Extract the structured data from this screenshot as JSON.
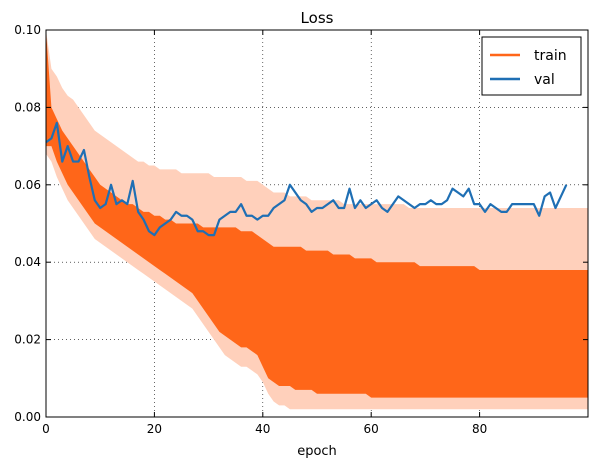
{
  "chart_data": {
    "type": "line",
    "title": "Loss",
    "xlabel": "epoch",
    "ylabel": "",
    "xlim": [
      0,
      100
    ],
    "ylim": [
      0.0,
      0.1
    ],
    "xticks": [
      0,
      20,
      40,
      60,
      80
    ],
    "xtick_labels": [
      "0",
      "20",
      "40",
      "60",
      "80"
    ],
    "yticks": [
      0.0,
      0.02,
      0.04,
      0.06,
      0.08,
      0.1
    ],
    "ytick_labels": [
      "0.00",
      "0.02",
      "0.04",
      "0.06",
      "0.08",
      "0.10"
    ],
    "grid": true,
    "legend_position": "top-right",
    "series": [
      {
        "name": "train",
        "color": "#ff6619",
        "band_color": "#ffd0bb",
        "x": [
          0,
          1,
          2,
          3,
          4,
          5,
          6,
          7,
          8,
          9,
          10,
          11,
          12,
          13,
          14,
          15,
          16,
          17,
          18,
          19,
          20,
          21,
          22,
          23,
          24,
          25,
          26,
          27,
          28,
          29,
          30,
          31,
          32,
          33,
          34,
          35,
          36,
          37,
          38,
          39,
          40,
          41,
          42,
          43,
          44,
          45,
          46,
          47,
          48,
          49,
          50,
          51,
          52,
          53,
          54,
          55,
          56,
          57,
          58,
          59,
          60,
          61,
          62,
          63,
          64,
          65,
          66,
          67,
          68,
          69,
          70,
          71,
          72,
          73,
          74,
          75,
          76,
          77,
          78,
          79,
          80,
          81,
          82,
          83,
          84,
          85,
          86,
          87,
          88,
          89,
          90,
          91,
          92,
          93,
          94,
          95,
          96,
          97,
          98,
          99,
          100
        ],
        "upper": [
          0.1,
          0.08,
          0.077,
          0.074,
          0.072,
          0.07,
          0.068,
          0.066,
          0.064,
          0.062,
          0.06,
          0.059,
          0.058,
          0.057,
          0.056,
          0.055,
          0.055,
          0.054,
          0.053,
          0.053,
          0.052,
          0.052,
          0.051,
          0.051,
          0.05,
          0.05,
          0.05,
          0.05,
          0.05,
          0.049,
          0.049,
          0.049,
          0.049,
          0.049,
          0.049,
          0.049,
          0.048,
          0.048,
          0.048,
          0.047,
          0.046,
          0.045,
          0.044,
          0.044,
          0.044,
          0.044,
          0.044,
          0.044,
          0.043,
          0.043,
          0.043,
          0.043,
          0.043,
          0.042,
          0.042,
          0.042,
          0.042,
          0.041,
          0.041,
          0.041,
          0.041,
          0.04,
          0.04,
          0.04,
          0.04,
          0.04,
          0.04,
          0.04,
          0.04,
          0.039,
          0.039,
          0.039,
          0.039,
          0.039,
          0.039,
          0.039,
          0.039,
          0.039,
          0.039,
          0.039,
          0.038,
          0.038,
          0.038,
          0.038,
          0.038,
          0.038,
          0.038,
          0.038,
          0.038,
          0.038,
          0.038,
          0.038,
          0.038,
          0.038,
          0.038,
          0.038,
          0.038,
          0.038,
          0.038,
          0.038,
          0.038
        ],
        "lower": [
          0.07,
          0.07,
          0.066,
          0.063,
          0.06,
          0.058,
          0.056,
          0.054,
          0.052,
          0.05,
          0.049,
          0.048,
          0.047,
          0.046,
          0.045,
          0.044,
          0.043,
          0.042,
          0.041,
          0.04,
          0.039,
          0.038,
          0.037,
          0.036,
          0.035,
          0.034,
          0.033,
          0.032,
          0.03,
          0.028,
          0.026,
          0.024,
          0.022,
          0.021,
          0.02,
          0.019,
          0.018,
          0.018,
          0.017,
          0.016,
          0.013,
          0.01,
          0.009,
          0.008,
          0.008,
          0.008,
          0.007,
          0.007,
          0.007,
          0.007,
          0.006,
          0.006,
          0.006,
          0.006,
          0.006,
          0.006,
          0.006,
          0.006,
          0.006,
          0.006,
          0.005,
          0.005,
          0.005,
          0.005,
          0.005,
          0.005,
          0.005,
          0.005,
          0.005,
          0.005,
          0.005,
          0.005,
          0.005,
          0.005,
          0.005,
          0.005,
          0.005,
          0.005,
          0.005,
          0.005,
          0.005,
          0.005,
          0.005,
          0.005,
          0.005,
          0.005,
          0.005,
          0.005,
          0.005,
          0.005,
          0.005,
          0.005,
          0.005,
          0.005,
          0.005,
          0.005,
          0.005,
          0.005,
          0.005,
          0.005,
          0.005
        ],
        "band_upper": [
          0.1,
          0.09,
          0.088,
          0.085,
          0.083,
          0.082,
          0.08,
          0.078,
          0.076,
          0.074,
          0.073,
          0.072,
          0.071,
          0.07,
          0.069,
          0.068,
          0.067,
          0.066,
          0.066,
          0.065,
          0.065,
          0.064,
          0.064,
          0.064,
          0.064,
          0.063,
          0.063,
          0.063,
          0.063,
          0.063,
          0.063,
          0.062,
          0.062,
          0.062,
          0.062,
          0.062,
          0.062,
          0.061,
          0.061,
          0.061,
          0.06,
          0.059,
          0.058,
          0.058,
          0.058,
          0.057,
          0.057,
          0.057,
          0.057,
          0.056,
          0.056,
          0.056,
          0.056,
          0.056,
          0.056,
          0.055,
          0.055,
          0.055,
          0.055,
          0.055,
          0.055,
          0.055,
          0.055,
          0.055,
          0.055,
          0.055,
          0.055,
          0.054,
          0.054,
          0.054,
          0.054,
          0.054,
          0.054,
          0.054,
          0.054,
          0.054,
          0.054,
          0.054,
          0.054,
          0.054,
          0.054,
          0.054,
          0.054,
          0.054,
          0.054,
          0.054,
          0.054,
          0.054,
          0.054,
          0.054,
          0.054,
          0.054,
          0.054,
          0.054,
          0.054,
          0.054,
          0.054,
          0.054,
          0.054,
          0.054,
          0.054
        ],
        "band_lower": [
          0.068,
          0.066,
          0.062,
          0.059,
          0.056,
          0.054,
          0.052,
          0.05,
          0.048,
          0.046,
          0.045,
          0.044,
          0.043,
          0.042,
          0.041,
          0.04,
          0.039,
          0.038,
          0.037,
          0.036,
          0.035,
          0.034,
          0.033,
          0.032,
          0.031,
          0.03,
          0.029,
          0.028,
          0.026,
          0.024,
          0.022,
          0.02,
          0.018,
          0.016,
          0.015,
          0.014,
          0.013,
          0.013,
          0.012,
          0.011,
          0.009,
          0.006,
          0.004,
          0.003,
          0.003,
          0.002,
          0.002,
          0.002,
          0.002,
          0.002,
          0.002,
          0.002,
          0.002,
          0.002,
          0.002,
          0.002,
          0.002,
          0.002,
          0.002,
          0.002,
          0.002,
          0.002,
          0.002,
          0.002,
          0.002,
          0.002,
          0.002,
          0.002,
          0.002,
          0.002,
          0.002,
          0.002,
          0.002,
          0.002,
          0.002,
          0.002,
          0.002,
          0.002,
          0.002,
          0.002,
          0.002,
          0.002,
          0.002,
          0.002,
          0.002,
          0.002,
          0.002,
          0.002,
          0.002,
          0.002,
          0.002,
          0.002,
          0.002,
          0.002,
          0.002,
          0.002,
          0.002,
          0.002,
          0.002,
          0.002,
          0.002
        ]
      },
      {
        "name": "val",
        "color": "#1f6fb4",
        "x": [
          0,
          1,
          2,
          3,
          4,
          5,
          6,
          7,
          8,
          9,
          10,
          11,
          12,
          13,
          14,
          15,
          16,
          17,
          18,
          19,
          20,
          21,
          22,
          23,
          24,
          25,
          26,
          27,
          28,
          29,
          30,
          31,
          32,
          33,
          34,
          35,
          36,
          37,
          38,
          39,
          40,
          41,
          42,
          43,
          44,
          45,
          46,
          47,
          48,
          49,
          50,
          51,
          52,
          53,
          54,
          55,
          56,
          57,
          58,
          59,
          60,
          61,
          62,
          63,
          64,
          65,
          66,
          67,
          68,
          69,
          70,
          71,
          72,
          73,
          74,
          75,
          76,
          77,
          78,
          79,
          80,
          81,
          82,
          83,
          84,
          85,
          86,
          87,
          88,
          89,
          90,
          91,
          92,
          93,
          94,
          95,
          96
        ],
        "values": [
          0.071,
          0.072,
          0.076,
          0.066,
          0.07,
          0.066,
          0.066,
          0.069,
          0.062,
          0.056,
          0.054,
          0.055,
          0.06,
          0.055,
          0.056,
          0.055,
          0.061,
          0.053,
          0.051,
          0.048,
          0.047,
          0.049,
          0.05,
          0.051,
          0.053,
          0.052,
          0.052,
          0.051,
          0.048,
          0.048,
          0.047,
          0.047,
          0.051,
          0.052,
          0.053,
          0.053,
          0.055,
          0.052,
          0.052,
          0.051,
          0.052,
          0.052,
          0.054,
          0.055,
          0.056,
          0.06,
          0.058,
          0.056,
          0.055,
          0.053,
          0.054,
          0.054,
          0.055,
          0.056,
          0.054,
          0.054,
          0.059,
          0.054,
          0.056,
          0.054,
          0.055,
          0.056,
          0.054,
          0.053,
          0.055,
          0.057,
          0.056,
          0.055,
          0.054,
          0.055,
          0.055,
          0.056,
          0.055,
          0.055,
          0.056,
          0.059,
          0.058,
          0.057,
          0.059,
          0.055,
          0.055,
          0.053,
          0.055,
          0.054,
          0.053,
          0.053,
          0.055,
          0.055,
          0.055,
          0.055,
          0.055,
          0.052,
          0.057,
          0.058,
          0.054,
          0.057,
          0.06
        ]
      }
    ]
  }
}
